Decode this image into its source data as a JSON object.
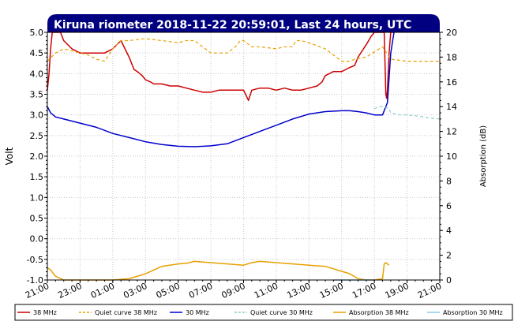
{
  "chart_data": {
    "type": "line",
    "title": "Kiruna riometer 2018-11-22 20:59:01, Last 24 hours, UTC",
    "ylabel": "Volt",
    "y2label": "Absorption (dB)",
    "ylim": [
      -1.0,
      5.0
    ],
    "y2lim": [
      0,
      20
    ],
    "xlim": [
      21,
      45
    ],
    "grid": true,
    "legend_placement": "bottom",
    "y_ticks": [
      "5.0",
      "4.5",
      "4.0",
      "3.5",
      "3.0",
      "2.5",
      "2.0",
      "1.5",
      "1.0",
      "0.5",
      "0.0",
      "-0.5",
      "-1.0"
    ],
    "y2_ticks": [
      "20",
      "18",
      "16",
      "14",
      "12",
      "10",
      "8",
      "6",
      "4",
      "2",
      "0"
    ],
    "x_tick_labels": [
      "21:00",
      "23:00",
      "01:00",
      "03:00",
      "05:00",
      "07:00",
      "09:00",
      "11:00",
      "13:00",
      "15:00",
      "17:00",
      "19:00",
      "21:00"
    ],
    "series": [
      {
        "name": "38 MHz",
        "color": "#cc0000",
        "style": "solid",
        "axis": "left",
        "x": [
          21.0,
          21.1,
          21.2,
          21.3,
          21.5,
          21.8,
          22.0,
          22.5,
          23.0,
          23.5,
          24.0,
          24.5,
          25.0,
          25.5,
          26.0,
          26.3,
          26.5,
          26.8,
          27.0,
          27.3,
          27.5,
          28.0,
          28.5,
          29.0,
          29.5,
          30.0,
          30.5,
          31.0,
          31.5,
          32.0,
          32.5,
          33.0,
          33.3,
          33.5,
          34.0,
          34.5,
          35.0,
          35.5,
          36.0,
          36.5,
          37.0,
          37.5,
          37.8,
          38.0,
          38.5,
          39.0,
          39.5,
          39.8,
          40.0,
          40.5,
          40.8,
          41.0,
          41.3,
          41.6,
          41.7,
          41.75,
          41.8,
          41.9,
          42.0,
          42.2
        ],
        "values": [
          3.6,
          4.0,
          4.6,
          5.0,
          5.0,
          5.0,
          4.8,
          4.6,
          4.5,
          4.5,
          4.5,
          4.5,
          4.6,
          4.8,
          4.4,
          4.1,
          4.05,
          3.95,
          3.85,
          3.8,
          3.75,
          3.75,
          3.7,
          3.7,
          3.65,
          3.6,
          3.55,
          3.55,
          3.6,
          3.6,
          3.6,
          3.6,
          3.35,
          3.6,
          3.65,
          3.65,
          3.6,
          3.65,
          3.6,
          3.6,
          3.65,
          3.7,
          3.8,
          3.95,
          4.05,
          4.05,
          4.15,
          4.2,
          4.4,
          4.7,
          4.9,
          5.0,
          5.0,
          5.0,
          3.5,
          3.4,
          3.6,
          4.5,
          5.0,
          5.0
        ]
      },
      {
        "name": "Quiet curve 38 MHz",
        "color": "#e8a000",
        "style": "dashed",
        "axis": "left",
        "x": [
          21.0,
          21.5,
          22.0,
          22.5,
          23.0,
          23.5,
          24.0,
          24.5,
          25.0,
          25.5,
          26.0,
          27.0,
          28.0,
          29.0,
          29.5,
          30.0,
          31.0,
          32.0,
          32.5,
          32.8,
          33.0,
          33.5,
          34.0,
          35.0,
          35.5,
          36.0,
          36.2,
          36.5,
          37.0,
          38.0,
          39.0,
          39.5,
          39.8,
          40.5,
          41.5,
          42.0,
          43.0,
          44.0,
          45.0
        ],
        "values": [
          4.3,
          4.5,
          4.6,
          4.55,
          4.5,
          4.45,
          4.35,
          4.3,
          4.6,
          4.8,
          4.8,
          4.85,
          4.8,
          4.75,
          4.8,
          4.8,
          4.5,
          4.5,
          4.65,
          4.8,
          4.8,
          4.65,
          4.65,
          4.6,
          4.65,
          4.65,
          4.8,
          4.8,
          4.75,
          4.6,
          4.3,
          4.3,
          4.35,
          4.4,
          4.65,
          4.35,
          4.3,
          4.3,
          4.3
        ]
      },
      {
        "name": "30 MHz",
        "color": "#0000cc",
        "style": "solid",
        "axis": "left",
        "x": [
          21.0,
          21.2,
          21.5,
          22.0,
          23.0,
          24.0,
          25.0,
          26.0,
          27.0,
          28.0,
          29.0,
          30.0,
          31.0,
          32.0,
          33.0,
          34.0,
          35.0,
          36.0,
          37.0,
          38.0,
          39.0,
          39.5,
          40.0,
          40.5,
          41.0,
          41.5,
          41.8,
          42.0,
          42.2
        ],
        "values": [
          3.2,
          3.05,
          2.95,
          2.9,
          2.8,
          2.7,
          2.55,
          2.45,
          2.35,
          2.28,
          2.24,
          2.23,
          2.25,
          2.3,
          2.45,
          2.6,
          2.75,
          2.9,
          3.02,
          3.08,
          3.1,
          3.1,
          3.08,
          3.05,
          3.0,
          3.0,
          3.3,
          4.5,
          5.0
        ]
      },
      {
        "name": "Quiet curve 30 MHz",
        "color": "#88cccc",
        "style": "dashed",
        "axis": "left",
        "x": [
          41.0,
          41.3,
          41.6,
          41.9,
          42.0,
          42.5,
          43.0,
          43.5,
          44.0,
          44.5,
          45.0
        ],
        "values": [
          3.15,
          3.2,
          3.2,
          3.15,
          3.05,
          3.0,
          3.0,
          2.98,
          2.95,
          2.92,
          2.9
        ]
      },
      {
        "name": "Absorption 38 MHz",
        "color": "#e8a000",
        "style": "solid",
        "axis": "right",
        "x": [
          21.0,
          21.2,
          21.5,
          22.0,
          22.5,
          23.0,
          24.0,
          25.0,
          26.0,
          27.0,
          27.5,
          28.0,
          29.0,
          29.5,
          30.0,
          31.0,
          32.0,
          33.0,
          33.5,
          34.0,
          35.0,
          36.0,
          37.0,
          38.0,
          39.0,
          39.5,
          40.0,
          40.5,
          41.0,
          41.5,
          41.6,
          41.7,
          41.8,
          41.9
        ],
        "values": [
          1.0,
          0.8,
          0.3,
          0.0,
          0.0,
          0.0,
          0.0,
          0.0,
          0.1,
          0.5,
          0.8,
          1.1,
          1.3,
          1.35,
          1.5,
          1.4,
          1.3,
          1.2,
          1.4,
          1.5,
          1.4,
          1.3,
          1.2,
          1.1,
          0.7,
          0.5,
          0.1,
          0.0,
          0.0,
          0.1,
          1.3,
          1.4,
          1.3,
          1.2
        ]
      },
      {
        "name": "Absorption 30 MHz",
        "color": "#88ccee",
        "style": "solid",
        "axis": "right",
        "x": [
          38.5,
          39.0,
          40.0,
          41.0
        ],
        "values": [
          0.0,
          0.0,
          0.0,
          0.0
        ]
      }
    ]
  }
}
